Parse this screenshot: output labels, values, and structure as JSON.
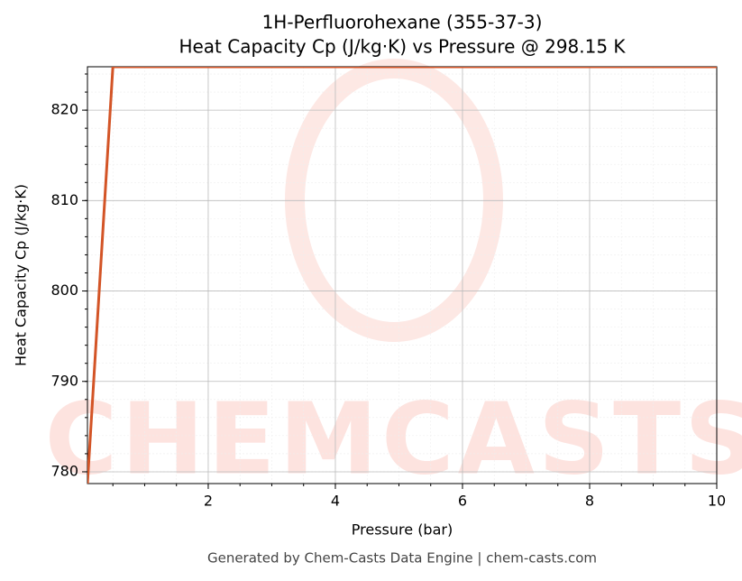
{
  "chart_data": {
    "type": "line",
    "title": "1H-Perfluorohexane (355-37-3)",
    "subtitle": "Heat Capacity Cp (J/kg·K) vs Pressure @ 298.15 K",
    "x_label": "Pressure (bar)",
    "y_label": "Heat Capacity Cp (J/kg·K)",
    "footer": "Generated by Chem-Casts Data Engine | chem-casts.com",
    "watermark": "CHEMCASTS",
    "x": [
      0.1,
      0.5,
      10
    ],
    "series": [
      {
        "name": "Heat Capacity Cp",
        "color": "#d35426",
        "values": [
          778.7,
          824.8,
          824.8
        ]
      }
    ],
    "xlim": [
      0.1,
      10
    ],
    "xticks": [
      2,
      4,
      6,
      8,
      10
    ],
    "ylim": [
      778.7,
      824.8
    ],
    "yticks": [
      780,
      790,
      800,
      810,
      820
    ],
    "grid": true
  }
}
